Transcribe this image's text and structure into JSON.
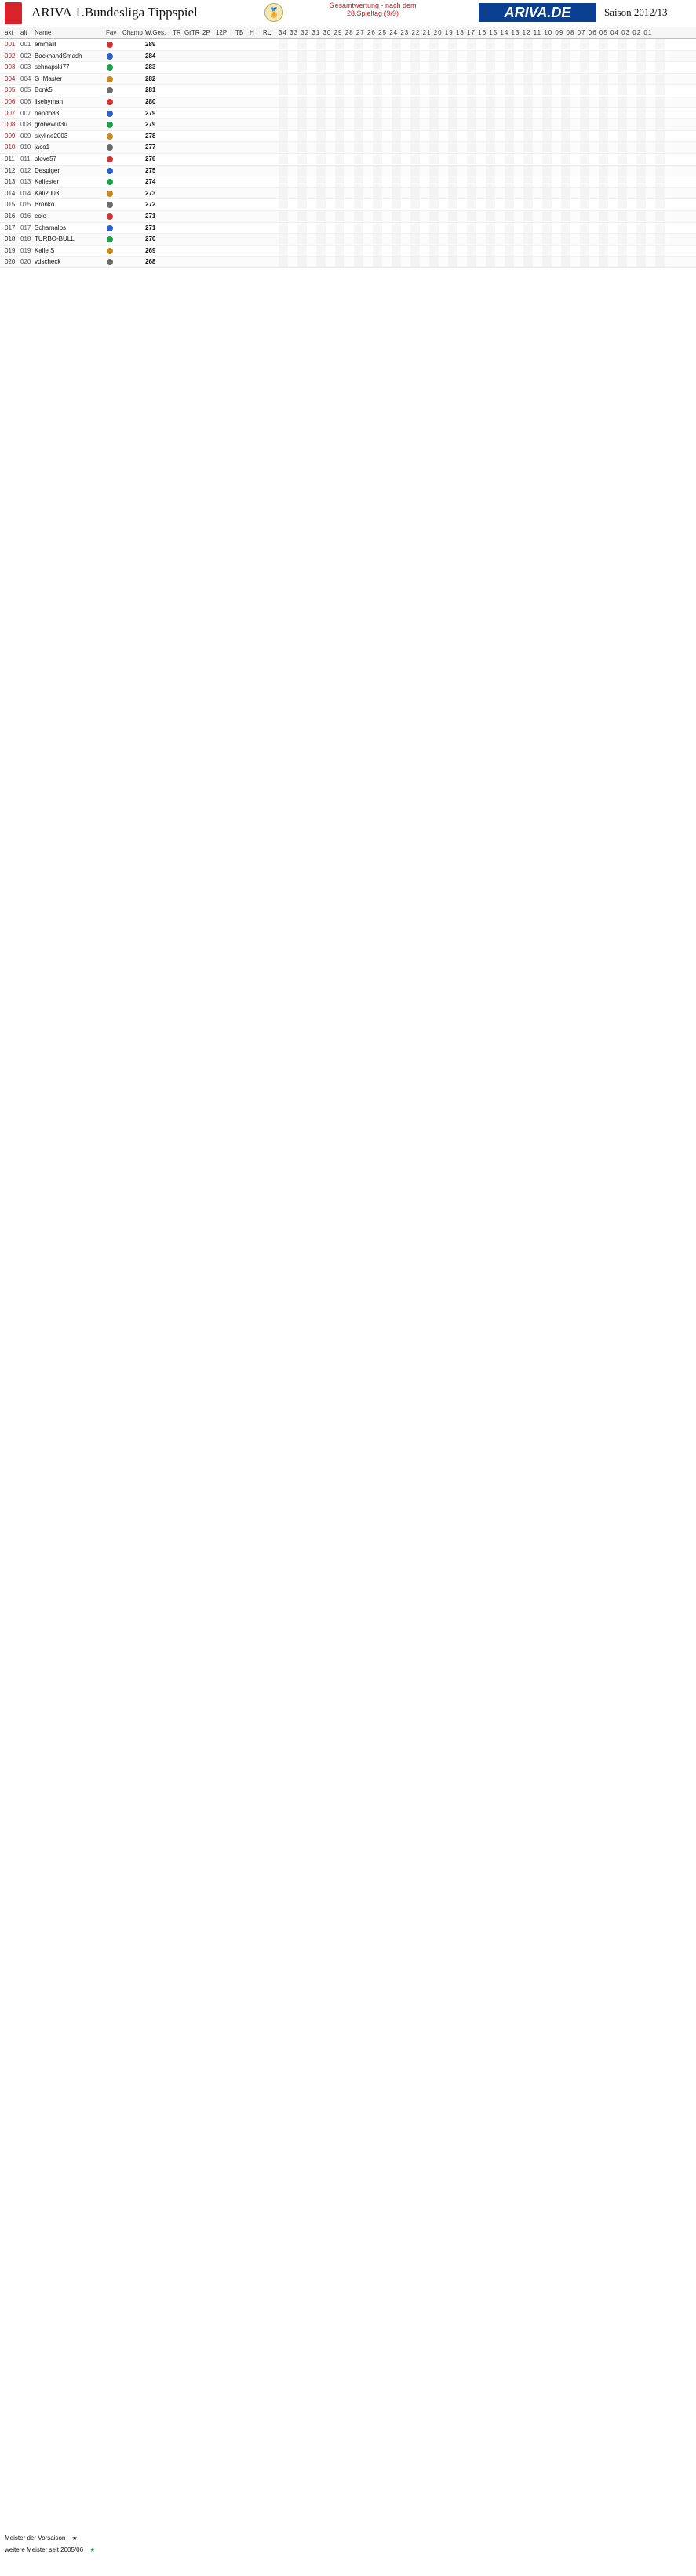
{
  "header": {
    "title": "ARIVA 1.Bundesliga Tippspiel",
    "overview_line1": "Gesamtwertung - nach dem",
    "overview_line2": "28.Spieltag (9/9)",
    "brand": "ARIVA.DE",
    "season": "Saison 2012/13"
  },
  "columns": {
    "labels": [
      "akt",
      "alt",
      "Name",
      "Fav",
      "Champ",
      "W.Ges.",
      "TR",
      "GrTR",
      "2P",
      "12P",
      "TB",
      "H",
      "RU"
    ],
    "matchdays": "34 33 32 31 30 29 28 27 26 25 24 23 22 21 20 19 18 17 16 15 14 13 12 11 10 09 08 07 06 05 04 03 02 01"
  },
  "leaderboard": [
    {
      "rank": "001",
      "idx": "001",
      "name": "emmaill",
      "pts": "289"
    },
    {
      "rank": "002",
      "idx": "002",
      "name": "BackhandSmash",
      "pts": "284"
    },
    {
      "rank": "003",
      "idx": "003",
      "name": "schnapski77",
      "pts": "283"
    },
    {
      "rank": "004",
      "idx": "004",
      "name": "G_Master",
      "pts": "282"
    },
    {
      "rank": "005",
      "idx": "005",
      "name": "Bonk5",
      "pts": "281"
    },
    {
      "rank": "006",
      "idx": "006",
      "name": "lisebyman",
      "pts": "280"
    },
    {
      "rank": "007",
      "idx": "007",
      "name": "nando83",
      "pts": "279"
    },
    {
      "rank": "008",
      "idx": "008",
      "name": "grobewuf3u",
      "pts": "279"
    },
    {
      "rank": "009",
      "idx": "009",
      "name": "skyline2003",
      "pts": "278"
    },
    {
      "rank": "010",
      "idx": "010",
      "name": "jaco1",
      "pts": "277"
    },
    {
      "rank": "011",
      "idx": "011",
      "name": "olove57",
      "pts": "276"
    },
    {
      "rank": "012",
      "idx": "012",
      "name": "Despiger",
      "pts": "275"
    },
    {
      "rank": "013",
      "idx": "013",
      "name": "Kaliester",
      "pts": "274"
    },
    {
      "rank": "014",
      "idx": "014",
      "name": "Kali2003",
      "pts": "273"
    },
    {
      "rank": "015",
      "idx": "015",
      "name": "Bronko",
      "pts": "272"
    },
    {
      "rank": "016",
      "idx": "016",
      "name": "eolo",
      "pts": "271"
    },
    {
      "rank": "017",
      "idx": "017",
      "name": "Scharnalps",
      "pts": "271"
    },
    {
      "rank": "018",
      "idx": "018",
      "name": "TURBO-BULL",
      "pts": "270"
    },
    {
      "rank": "019",
      "idx": "019",
      "name": "Kalle S",
      "pts": "269"
    },
    {
      "rank": "020",
      "idx": "020",
      "name": "vdscheck",
      "pts": "268"
    }
  ],
  "footer": {
    "legend1": "Meister der Vorsaison",
    "legend2": "weitere Meister seit 2005/06"
  }
}
